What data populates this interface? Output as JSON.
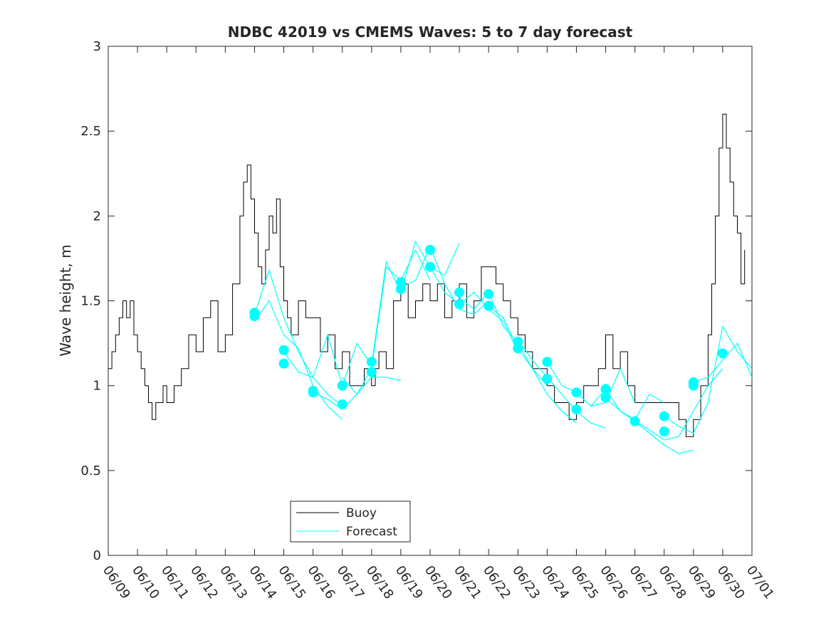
{
  "chart_data": {
    "type": "line",
    "title": "NDBC 42019 vs CMEMS Waves: 5 to 7 day forecast",
    "xlabel": "",
    "ylabel": "Wave height, m",
    "xlim": [
      "06/09",
      "07/01"
    ],
    "ylim": [
      0,
      3
    ],
    "x_tick_labels": [
      "06/09",
      "06/10",
      "06/11",
      "06/12",
      "06/13",
      "06/14",
      "06/15",
      "06/16",
      "06/17",
      "06/18",
      "06/19",
      "06/20",
      "06/21",
      "06/22",
      "06/23",
      "06/24",
      "06/25",
      "06/26",
      "06/27",
      "06/28",
      "06/29",
      "06/30",
      "07/01"
    ],
    "y_tick_labels": [
      "0",
      "0.5",
      "1",
      "1.5",
      "2",
      "2.5",
      "3"
    ],
    "y_ticks": [
      0,
      0.5,
      1,
      1.5,
      2,
      2.5,
      3
    ],
    "grid": false,
    "legend": {
      "position": "bottom-center",
      "entries": [
        {
          "label": "Buoy",
          "color": "#000000"
        },
        {
          "label": "Forecast",
          "color": "#00ffff"
        }
      ]
    },
    "colors": {
      "buoy": "#000000",
      "forecast": "#00ffff"
    },
    "buoy": {
      "name": "Buoy",
      "x": [
        "06/09 00:00",
        "06/09 03:00",
        "06/09 06:00",
        "06/09 09:00",
        "06/09 12:00",
        "06/09 15:00",
        "06/09 18:00",
        "06/09 21:00",
        "06/10 00:00",
        "06/10 03:00",
        "06/10 06:00",
        "06/10 09:00",
        "06/10 12:00",
        "06/10 15:00",
        "06/10 18:00",
        "06/10 21:00",
        "06/11 00:00",
        "06/11 06:00",
        "06/11 12:00",
        "06/11 18:00",
        "06/12 00:00",
        "06/12 06:00",
        "06/12 12:00",
        "06/12 18:00",
        "06/13 00:00",
        "06/13 06:00",
        "06/13 12:00",
        "06/13 15:00",
        "06/13 18:00",
        "06/13 21:00",
        "06/14 00:00",
        "06/14 03:00",
        "06/14 06:00",
        "06/14 09:00",
        "06/14 12:00",
        "06/14 15:00",
        "06/14 18:00",
        "06/14 21:00",
        "06/15 00:00",
        "06/15 03:00",
        "06/15 06:00",
        "06/15 12:00",
        "06/15 18:00",
        "06/16 00:00",
        "06/16 06:00",
        "06/16 12:00",
        "06/16 18:00",
        "06/17 00:00",
        "06/17 06:00",
        "06/17 12:00",
        "06/17 18:00",
        "06/18 00:00",
        "06/18 03:00",
        "06/18 06:00",
        "06/18 12:00",
        "06/18 18:00",
        "06/19 00:00",
        "06/19 06:00",
        "06/19 12:00",
        "06/19 18:00",
        "06/20 00:00",
        "06/20 06:00",
        "06/20 12:00",
        "06/20 18:00",
        "06/21 00:00",
        "06/21 06:00",
        "06/21 12:00",
        "06/21 18:00",
        "06/22 00:00",
        "06/22 06:00",
        "06/22 12:00",
        "06/22 18:00",
        "06/23 00:00",
        "06/23 06:00",
        "06/23 12:00",
        "06/23 18:00",
        "06/24 00:00",
        "06/24 06:00",
        "06/24 12:00",
        "06/24 18:00",
        "06/25 00:00",
        "06/25 06:00",
        "06/25 12:00",
        "06/25 18:00",
        "06/26 00:00",
        "06/26 06:00",
        "06/26 12:00",
        "06/26 18:00",
        "06/27 00:00",
        "06/27 06:00",
        "06/27 12:00",
        "06/27 18:00",
        "06/28 00:00",
        "06/28 06:00",
        "06/28 12:00",
        "06/28 18:00",
        "06/29 00:00",
        "06/29 06:00",
        "06/29 09:00",
        "06/29 12:00",
        "06/29 15:00",
        "06/29 18:00",
        "06/29 21:00",
        "06/30 00:00",
        "06/30 03:00",
        "06/30 06:00",
        "06/30 09:00",
        "06/30 12:00",
        "06/30 15:00",
        "06/30 18:00"
      ],
      "y": [
        1.1,
        1.2,
        1.3,
        1.4,
        1.5,
        1.4,
        1.5,
        1.3,
        1.2,
        1.1,
        1.0,
        0.9,
        0.8,
        0.9,
        0.9,
        1.0,
        0.9,
        1.0,
        1.1,
        1.3,
        1.2,
        1.4,
        1.5,
        1.2,
        1.3,
        1.6,
        2.0,
        2.2,
        2.3,
        2.1,
        1.9,
        1.7,
        1.6,
        1.8,
        2.0,
        1.9,
        2.1,
        1.7,
        1.5,
        1.4,
        1.3,
        1.5,
        1.4,
        1.4,
        1.2,
        1.3,
        1.1,
        1.2,
        1.0,
        1.0,
        1.1,
        1.0,
        1.1,
        1.2,
        1.1,
        1.5,
        1.6,
        1.4,
        1.5,
        1.6,
        1.5,
        1.6,
        1.4,
        1.5,
        1.6,
        1.4,
        1.5,
        1.7,
        1.7,
        1.6,
        1.5,
        1.4,
        1.3,
        1.2,
        1.1,
        1.1,
        1.0,
        0.9,
        0.9,
        0.8,
        0.9,
        1.0,
        1.0,
        1.1,
        1.3,
        1.1,
        1.2,
        1.0,
        0.9,
        0.9,
        0.9,
        0.9,
        0.9,
        0.9,
        0.8,
        0.7,
        0.8,
        1.0,
        1.0,
        1.3,
        1.6,
        2.0,
        2.4,
        2.6,
        2.4,
        2.2,
        2.0,
        1.9,
        1.6,
        1.8
      ]
    },
    "forecast": {
      "name": "Forecast",
      "lines": [
        {
          "x": [
            "06/14 00:00",
            "06/14 12:00",
            "06/15 00:00",
            "06/15 12:00",
            "06/16 00:00",
            "06/16 12:00",
            "06/17 00:00"
          ],
          "y": [
            1.42,
            1.68,
            1.4,
            1.2,
            1.05,
            0.95,
            0.88
          ]
        },
        {
          "x": [
            "06/14 00:00",
            "06/14 12:00",
            "06/15 00:00",
            "06/15 12:00",
            "06/16 00:00",
            "06/16 12:00",
            "06/17 00:00"
          ],
          "y": [
            1.38,
            1.5,
            1.3,
            1.22,
            1.0,
            0.88,
            0.8
          ]
        },
        {
          "x": [
            "06/15 00:00",
            "06/15 12:00",
            "06/16 00:00",
            "06/16 12:00",
            "06/17 00:00",
            "06/17 12:00",
            "06/18 00:00"
          ],
          "y": [
            1.2,
            1.08,
            1.05,
            1.3,
            1.0,
            1.25,
            1.12
          ]
        },
        {
          "x": [
            "06/16 00:00",
            "06/16 12:00",
            "06/17 00:00",
            "06/17 12:00",
            "06/18 00:00",
            "06/18 12:00",
            "06/19 00:00"
          ],
          "y": [
            0.96,
            0.92,
            0.86,
            0.95,
            1.05,
            1.05,
            1.03
          ]
        },
        {
          "x": [
            "06/17 00:00",
            "06/17 12:00",
            "06/18 00:00",
            "06/18 12:00",
            "06/19 00:00",
            "06/19 12:00",
            "06/20 00:00"
          ],
          "y": [
            1.05,
            0.95,
            1.1,
            1.7,
            1.62,
            1.8,
            1.62
          ]
        },
        {
          "x": [
            "06/18 00:00",
            "06/18 12:00",
            "06/19 00:00",
            "06/19 12:00",
            "06/20 00:00",
            "06/20 12:00",
            "06/21 00:00"
          ],
          "y": [
            1.12,
            1.73,
            1.55,
            1.85,
            1.7,
            1.65,
            1.84
          ]
        },
        {
          "x": [
            "06/19 00:00",
            "06/19 12:00",
            "06/20 00:00",
            "06/20 12:00",
            "06/21 00:00",
            "06/21 12:00",
            "06/22 00:00"
          ],
          "y": [
            1.58,
            1.62,
            1.82,
            1.6,
            1.45,
            1.42,
            1.5
          ]
        },
        {
          "x": [
            "06/20 00:00",
            "06/20 12:00",
            "06/21 00:00",
            "06/21 12:00",
            "06/22 00:00",
            "06/22 12:00",
            "06/23 00:00"
          ],
          "y": [
            1.7,
            1.55,
            1.48,
            1.55,
            1.45,
            1.38,
            1.2
          ]
        },
        {
          "x": [
            "06/21 00:00",
            "06/21 12:00",
            "06/22 00:00",
            "06/22 12:00",
            "06/23 00:00",
            "06/23 12:00",
            "06/24 00:00"
          ],
          "y": [
            1.52,
            1.45,
            1.55,
            1.35,
            1.25,
            1.1,
            1.0
          ]
        },
        {
          "x": [
            "06/22 00:00",
            "06/22 12:00",
            "06/23 00:00",
            "06/23 12:00",
            "06/24 00:00",
            "06/24 12:00",
            "06/25 00:00"
          ],
          "y": [
            1.47,
            1.4,
            1.22,
            1.1,
            0.95,
            0.85,
            0.78
          ]
        },
        {
          "x": [
            "06/23 00:00",
            "06/23 12:00",
            "06/24 00:00",
            "06/24 12:00",
            "06/25 00:00",
            "06/25 12:00",
            "06/26 00:00"
          ],
          "y": [
            1.27,
            1.15,
            1.05,
            0.95,
            0.85,
            0.78,
            0.75
          ]
        },
        {
          "x": [
            "06/24 00:00",
            "06/24 12:00",
            "06/25 00:00",
            "06/25 12:00",
            "06/26 00:00",
            "06/26 12:00",
            "06/27 00:00"
          ],
          "y": [
            1.14,
            1.0,
            0.96,
            0.88,
            0.9,
            1.1,
            0.9
          ]
        },
        {
          "x": [
            "06/25 00:00",
            "06/25 12:00",
            "06/26 00:00",
            "06/26 12:00",
            "06/27 00:00",
            "06/27 12:00",
            "06/28 00:00"
          ],
          "y": [
            0.96,
            0.88,
            0.98,
            0.85,
            0.8,
            0.95,
            0.9
          ]
        },
        {
          "x": [
            "06/26 00:00",
            "06/26 12:00",
            "06/27 00:00",
            "06/27 12:00",
            "06/28 00:00",
            "06/28 12:00",
            "06/29 00:00"
          ],
          "y": [
            0.93,
            0.85,
            0.79,
            0.72,
            0.65,
            0.6,
            0.62
          ]
        },
        {
          "x": [
            "06/27 00:00",
            "06/27 12:00",
            "06/28 00:00",
            "06/28 12:00",
            "06/29 00:00",
            "06/29 12:00",
            "06/30 00:00"
          ],
          "y": [
            0.79,
            0.74,
            0.68,
            0.7,
            0.85,
            1.0,
            1.1
          ]
        },
        {
          "x": [
            "06/28 00:00",
            "06/28 12:00",
            "06/29 00:00",
            "06/29 12:00",
            "06/30 00:00",
            "06/30 12:00",
            "07/01 00:00"
          ],
          "y": [
            0.82,
            0.76,
            0.72,
            0.9,
            1.35,
            1.2,
            1.1
          ]
        },
        {
          "x": [
            "06/29 00:00",
            "06/29 12:00",
            "06/30 00:00",
            "06/30 12:00",
            "07/01 00:00"
          ],
          "y": [
            1.02,
            1.05,
            1.15,
            1.25,
            1.05
          ]
        }
      ],
      "markers": {
        "x": [
          "06/14 00:00",
          "06/14 00:00",
          "06/15 00:00",
          "06/15 00:00",
          "06/16 00:00",
          "06/16 00:00",
          "06/17 00:00",
          "06/17 00:00",
          "06/18 00:00",
          "06/18 00:00",
          "06/19 00:00",
          "06/19 00:00",
          "06/20 00:00",
          "06/20 00:00",
          "06/21 00:00",
          "06/21 00:00",
          "06/22 00:00",
          "06/22 00:00",
          "06/23 00:00",
          "06/23 00:00",
          "06/24 00:00",
          "06/24 00:00",
          "06/25 00:00",
          "06/25 00:00",
          "06/26 00:00",
          "06/26 00:00",
          "06/27 00:00",
          "06/28 00:00",
          "06/28 00:00",
          "06/29 00:00",
          "06/29 00:00",
          "06/30 00:00"
        ],
        "y": [
          1.43,
          1.41,
          1.21,
          1.13,
          0.97,
          0.96,
          1.0,
          0.89,
          1.14,
          1.08,
          1.61,
          1.57,
          1.8,
          1.7,
          1.55,
          1.48,
          1.54,
          1.47,
          1.26,
          1.22,
          1.14,
          1.04,
          0.96,
          0.86,
          0.98,
          0.93,
          0.79,
          0.82,
          0.73,
          1.02,
          1.0,
          1.19
        ]
      }
    }
  }
}
